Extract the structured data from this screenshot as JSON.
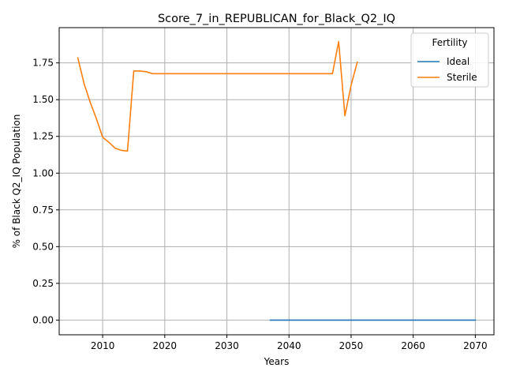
{
  "chart_data": {
    "type": "line",
    "title": "Score_7_in_REPUBLICAN_for_Black_Q2_IQ",
    "xlabel": "Years",
    "ylabel": "% of Black Q2_IQ Population",
    "xlim": [
      2003,
      2073
    ],
    "ylim": [
      -0.1,
      1.99
    ],
    "xticks": [
      2010,
      2020,
      2030,
      2040,
      2050,
      2060,
      2070
    ],
    "yticks": [
      0.0,
      0.25,
      0.5,
      0.75,
      1.0,
      1.25,
      1.5,
      1.75
    ],
    "ytick_labels": [
      "0.00",
      "0.25",
      "0.50",
      "0.75",
      "1.00",
      "1.25",
      "1.50",
      "1.75"
    ],
    "grid": true,
    "legend": {
      "title": "Fertility",
      "placement": "top-right"
    },
    "series": [
      {
        "name": "Ideal",
        "color": "#1f77b4",
        "x": [
          2037,
          2040,
          2045,
          2050,
          2055,
          2060,
          2065,
          2070
        ],
        "y": [
          0.0,
          0.0,
          0.0,
          0.0,
          0.0,
          0.0,
          0.0,
          0.0
        ]
      },
      {
        "name": "Sterile",
        "color": "#ff7f0e",
        "x": [
          2006,
          2007,
          2008,
          2009,
          2010,
          2011,
          2012,
          2013,
          2014,
          2015,
          2016,
          2017,
          2018,
          2019,
          2020,
          2025,
          2030,
          2035,
          2040,
          2045,
          2047,
          2048,
          2049,
          2050,
          2051
        ],
        "y": [
          1.785,
          1.61,
          1.48,
          1.37,
          1.245,
          1.21,
          1.17,
          1.155,
          1.15,
          1.695,
          1.695,
          1.69,
          1.677,
          1.677,
          1.677,
          1.677,
          1.677,
          1.677,
          1.677,
          1.677,
          1.677,
          1.895,
          1.39,
          1.6,
          1.755
        ]
      }
    ]
  }
}
